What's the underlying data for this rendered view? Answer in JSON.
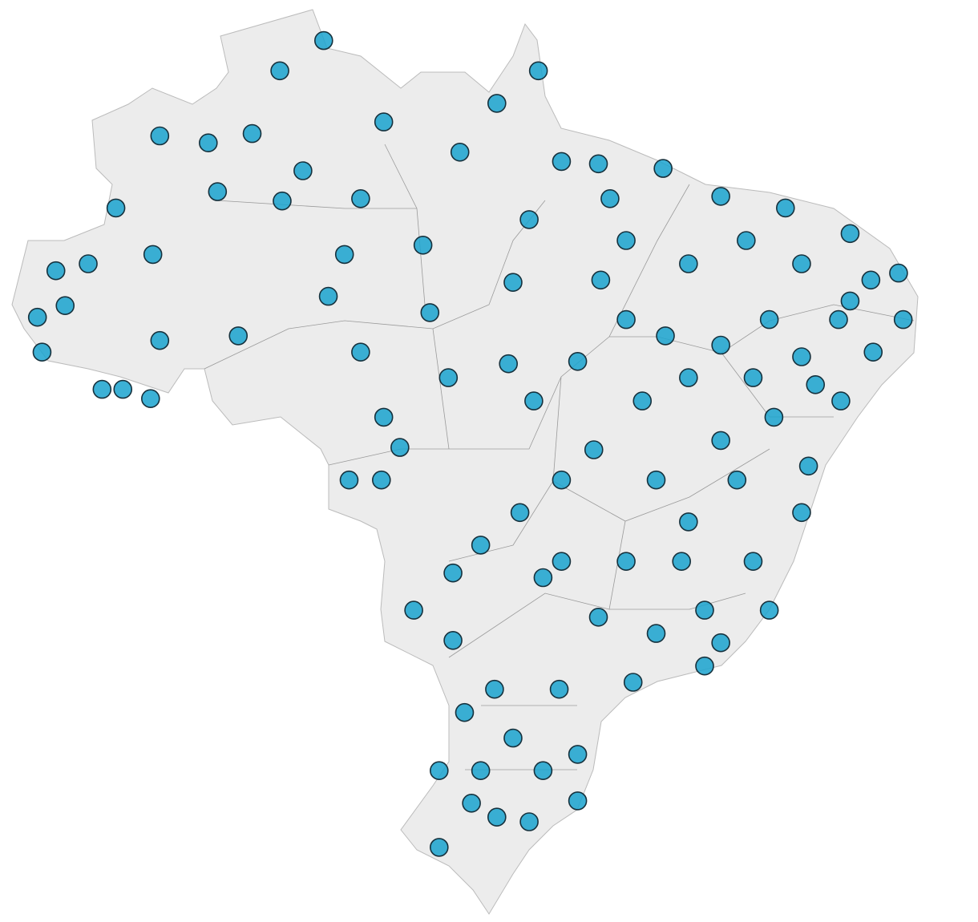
{
  "map": {
    "lon": [
      -60.5,
      -62.4,
      -51.2,
      -63.6,
      -67.6,
      -65.5,
      -57.9,
      -54.6,
      -61.4,
      -69.5,
      -67.9,
      -72.1,
      -72.9,
      -72.7,
      -70.1,
      -69.2,
      -68.0,
      -67.6,
      -64.2,
      -60.3,
      -59.6,
      -62.3,
      -58.9,
      -56.2,
      -55.9,
      -52.3,
      -51.6,
      -48.6,
      -45.8,
      -43.3,
      -40.5,
      -37.7,
      -35.6,
      -35.4,
      -36.7,
      -38.1,
      -39.5,
      -39.8,
      -41.2,
      -43.3,
      -44.0,
      -47.1,
      -49.5,
      -49.5,
      -51.6,
      -53.0,
      -55.5,
      -55.5,
      -54.4,
      -54.9,
      -56.6,
      -58.0,
      -59.4,
      -58.9,
      -55.1,
      -52.5,
      -51.4,
      -49.5,
      -48.5,
      -47.4,
      -44.7,
      -42.2,
      -39.8,
      -41.2,
      -43.3,
      -44.7,
      -46.7,
      -48.8,
      -50.2,
      -52.0,
      -53.7,
      -50.2,
      -47.4,
      -44.7,
      -42.6,
      -41.9,
      -44.0,
      -46.1,
      -48.6,
      -51.0,
      -53.1,
      -52.3,
      -51.0,
      -53.7,
      -54.1,
      -50.3,
      -54.9,
      -47.4,
      -45.7,
      -38.2,
      -36.8,
      -39.2,
      -41.0,
      -43.3,
      -46.1,
      -45.0,
      -41.9,
      -48.1,
      -50.2,
      -53.0,
      -57.9,
      -57.2,
      -65.1,
      -70.7,
      -71.7,
      -39.8,
      -37.7
    ],
    "lat": [
      3.9,
      2.6,
      2.6,
      -0.1,
      -0.2,
      -0.5,
      0.4,
      -0.9,
      -1.7,
      -3.3,
      -5.3,
      -6.0,
      -8.0,
      -9.5,
      -11.1,
      -11.1,
      -11.5,
      -9.0,
      -8.8,
      -7.1,
      -5.3,
      -3.0,
      -2.9,
      -4.9,
      -7.8,
      -6.5,
      -3.8,
      -1.4,
      -1.6,
      -2.8,
      -3.3,
      -4.4,
      -6.1,
      -8.1,
      -9.5,
      -11.6,
      -14.4,
      -16.4,
      -20.6,
      -22.0,
      -23.0,
      -23.7,
      -26.8,
      -28.8,
      -29.7,
      -29.5,
      -30.8,
      -27.5,
      -25.0,
      -21.9,
      -20.6,
      -15.0,
      -15.0,
      -9.5,
      -10.6,
      -10.0,
      -11.6,
      -9.9,
      -6.4,
      -4.7,
      -5.7,
      -4.7,
      -5.7,
      -8.1,
      -9.2,
      -10.6,
      -11.6,
      -13.7,
      -15.0,
      -16.4,
      -17.8,
      -18.5,
      -18.5,
      -16.8,
      -15.0,
      -18.5,
      -20.6,
      -21.6,
      -20.9,
      -19.2,
      -24.0,
      -26.1,
      -27.5,
      -27.5,
      -28.9,
      -24.0,
      -19.0,
      -8.1,
      -8.8,
      -8.1,
      -6.4,
      -10.9,
      -12.3,
      -13.3,
      -15.0,
      -18.5,
      -10.6,
      -2.9,
      -1.3,
      1.2,
      -12.3,
      -13.6,
      -2.6,
      -5.7,
      -7.5,
      -9.7,
      -7.3
    ]
  }
}
